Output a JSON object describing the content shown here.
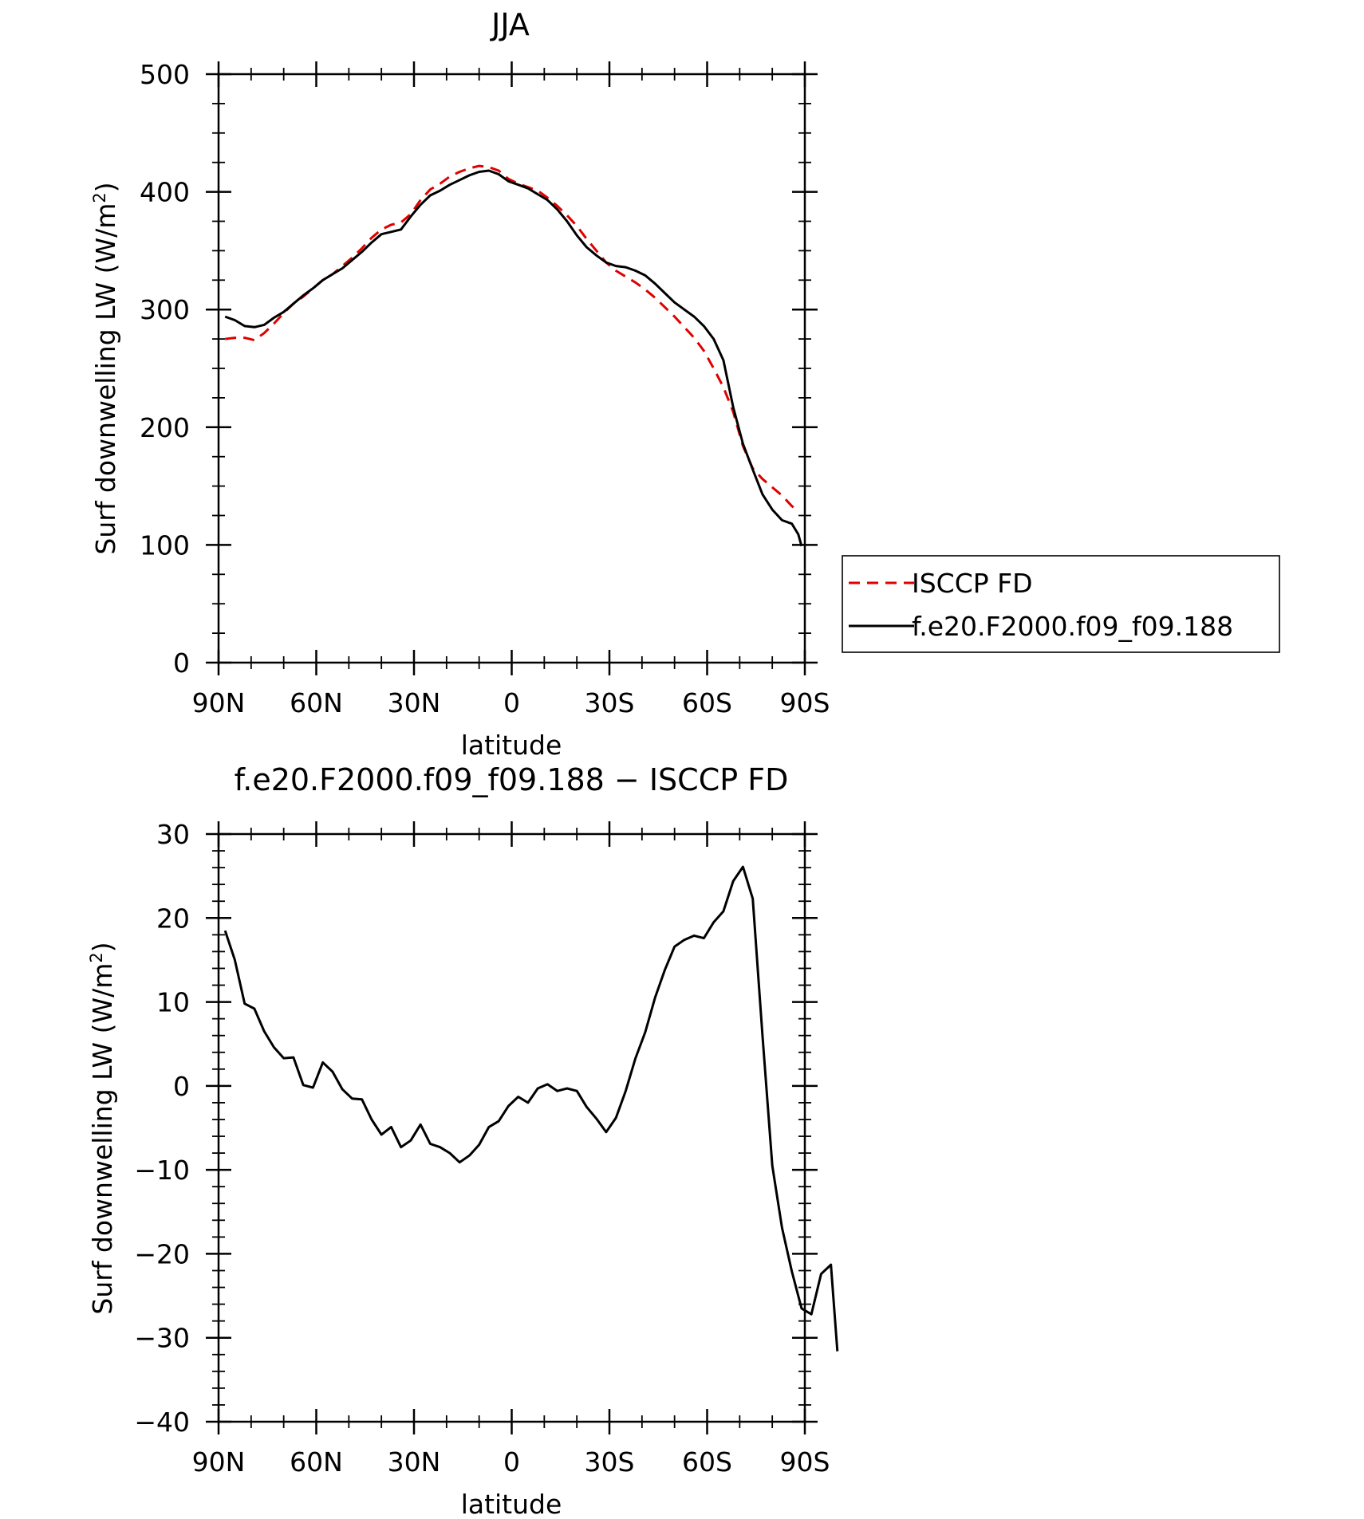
{
  "chart_data": [
    {
      "type": "line",
      "title": "JJA",
      "xlabel": "latitude",
      "ylabel": "Surf downwelling LW (W/m²)",
      "ylabel_main": "Surf downwelling LW (W/m",
      "ylabel_sup": "2",
      "ylabel_close": ")",
      "xlim": [
        90,
        -90
      ],
      "ylim": [
        0,
        500
      ],
      "xticks": [
        {
          "value": 90,
          "label": "90N"
        },
        {
          "value": 60,
          "label": "60N"
        },
        {
          "value": 30,
          "label": "30N"
        },
        {
          "value": 0,
          "label": "0"
        },
        {
          "value": -30,
          "label": "30S"
        },
        {
          "value": -60,
          "label": "60S"
        },
        {
          "value": -90,
          "label": "90S"
        }
      ],
      "yticks": [
        {
          "value": 0,
          "label": "0"
        },
        {
          "value": 100,
          "label": "100"
        },
        {
          "value": 200,
          "label": "200"
        },
        {
          "value": 300,
          "label": "300"
        },
        {
          "value": 400,
          "label": "400"
        },
        {
          "value": 500,
          "label": "500"
        }
      ],
      "legend": "right",
      "series": [
        {
          "name": "ISCCP FD",
          "color": "#e00000",
          "dashed": true,
          "points": [
            [
              88,
              275
            ],
            [
              85,
              276
            ],
            [
              82,
              276
            ],
            [
              79,
              274
            ],
            [
              76,
              280
            ],
            [
              73,
              288
            ],
            [
              70,
              297
            ],
            [
              67,
              305
            ],
            [
              64,
              311
            ],
            [
              61,
              318
            ],
            [
              58,
              325
            ],
            [
              55,
              330
            ],
            [
              52,
              337
            ],
            [
              49,
              344
            ],
            [
              46,
              352
            ],
            [
              43,
              361
            ],
            [
              40,
              368
            ],
            [
              37,
              372
            ],
            [
              34,
              374
            ],
            [
              31,
              381
            ],
            [
              28,
              393
            ],
            [
              25,
              402
            ],
            [
              22,
              407
            ],
            [
              19,
              413
            ],
            [
              16,
              417
            ],
            [
              13,
              420
            ],
            [
              10,
              422
            ],
            [
              7,
              421
            ],
            [
              4,
              418
            ],
            [
              1,
              411
            ],
            [
              -2,
              407
            ],
            [
              -5,
              404
            ],
            [
              -8,
              401
            ],
            [
              -11,
              395
            ],
            [
              -14,
              388
            ],
            [
              -17,
              380
            ],
            [
              -20,
              371
            ],
            [
              -23,
              360
            ],
            [
              -26,
              350
            ],
            [
              -29,
              340
            ],
            [
              -32,
              333
            ],
            [
              -35,
              328
            ],
            [
              -38,
              323
            ],
            [
              -41,
              317
            ],
            [
              -44,
              310
            ],
            [
              -47,
              302
            ],
            [
              -50,
              294
            ],
            [
              -53,
              285
            ],
            [
              -56,
              276
            ],
            [
              -59,
              265
            ],
            [
              -62,
              250
            ],
            [
              -65,
              234
            ],
            [
              -68,
              213
            ],
            [
              -71,
              184
            ],
            [
              -74,
              165
            ],
            [
              -77,
              156
            ],
            [
              -80,
              149
            ],
            [
              -83,
              142
            ],
            [
              -86,
              133
            ],
            [
              -88,
              129
            ]
          ]
        },
        {
          "name": "f.e20.F2000.f09_f09.188",
          "color": "#000000",
          "dashed": false,
          "points": [
            [
              88,
              294
            ],
            [
              85,
              291
            ],
            [
              82,
              286
            ],
            [
              79,
              285
            ],
            [
              76,
              287
            ],
            [
              73,
              293
            ],
            [
              70,
              298
            ],
            [
              67,
              305
            ],
            [
              64,
              312
            ],
            [
              61,
              318
            ],
            [
              58,
              325
            ],
            [
              55,
              330
            ],
            [
              52,
              335
            ],
            [
              49,
              342
            ],
            [
              46,
              349
            ],
            [
              43,
              357
            ],
            [
              40,
              364
            ],
            [
              37,
              366
            ],
            [
              34,
              368
            ],
            [
              31,
              379
            ],
            [
              28,
              389
            ],
            [
              25,
              397
            ],
            [
              22,
              401
            ],
            [
              19,
              406
            ],
            [
              16,
              410
            ],
            [
              13,
              414
            ],
            [
              10,
              417
            ],
            [
              7,
              418
            ],
            [
              4,
              415
            ],
            [
              1,
              409
            ],
            [
              -2,
              406
            ],
            [
              -5,
              403
            ],
            [
              -8,
              398
            ],
            [
              -11,
              393
            ],
            [
              -14,
              385
            ],
            [
              -17,
              375
            ],
            [
              -20,
              363
            ],
            [
              -23,
              353
            ],
            [
              -26,
              346
            ],
            [
              -29,
              340
            ],
            [
              -32,
              337
            ],
            [
              -35,
              336
            ],
            [
              -38,
              333
            ],
            [
              -41,
              329
            ],
            [
              -44,
              322
            ],
            [
              -47,
              314
            ],
            [
              -50,
              306
            ],
            [
              -53,
              300
            ],
            [
              -56,
              294
            ],
            [
              -59,
              286
            ],
            [
              -62,
              275
            ],
            [
              -65,
              257
            ],
            [
              -68,
              217
            ],
            [
              -71,
              186
            ],
            [
              -74,
              164
            ],
            [
              -77,
              143
            ],
            [
              -80,
              130
            ],
            [
              -83,
              121
            ],
            [
              -86,
              118
            ],
            [
              -88,
              109
            ],
            [
              -89,
              99
            ]
          ]
        }
      ]
    },
    {
      "type": "line",
      "title": "f.e20.F2000.f09_f09.188 − ISCCP FD",
      "xlabel": "latitude",
      "ylabel": "Surf downwelling LW (W/m²)",
      "ylabel_main": "Surf downwelling LW (W/m",
      "ylabel_sup": "2",
      "ylabel_close": ")",
      "xlim": [
        90,
        -90
      ],
      "ylim": [
        -40,
        30
      ],
      "xticks": [
        {
          "value": 90,
          "label": "90N"
        },
        {
          "value": 60,
          "label": "60N"
        },
        {
          "value": 30,
          "label": "30N"
        },
        {
          "value": 0,
          "label": "0"
        },
        {
          "value": -30,
          "label": "30S"
        },
        {
          "value": -60,
          "label": "60S"
        },
        {
          "value": -90,
          "label": "90S"
        }
      ],
      "yticks": [
        {
          "value": -40,
          "label": "−40"
        },
        {
          "value": -30,
          "label": "−30"
        },
        {
          "value": -20,
          "label": "−20"
        },
        {
          "value": -10,
          "label": "−10"
        },
        {
          "value": 0,
          "label": "0"
        },
        {
          "value": 10,
          "label": "10"
        },
        {
          "value": 20,
          "label": "20"
        },
        {
          "value": 30,
          "label": "30"
        }
      ],
      "series": [
        {
          "name": "",
          "color": "#000000",
          "dashed": false,
          "points": [
            [
              88,
              18.5
            ],
            [
              85,
              15
            ],
            [
              82,
              9.8
            ],
            [
              79,
              9.2
            ],
            [
              76,
              6.5
            ],
            [
              73,
              4.6
            ],
            [
              70,
              3.3
            ],
            [
              67,
              3.4
            ],
            [
              64,
              0.1
            ],
            [
              61,
              -0.2
            ],
            [
              58,
              2.8
            ],
            [
              55,
              1.7
            ],
            [
              52,
              -0.4
            ],
            [
              49,
              -1.5
            ],
            [
              46,
              -1.6
            ],
            [
              43,
              -4.0
            ],
            [
              40,
              -5.8
            ],
            [
              37,
              -4.9
            ],
            [
              34,
              -7.3
            ],
            [
              31,
              -6.5
            ],
            [
              28,
              -4.6
            ],
            [
              25,
              -6.9
            ],
            [
              22,
              -7.3
            ],
            [
              19,
              -8.0
            ],
            [
              16,
              -9.1
            ],
            [
              13,
              -8.3
            ],
            [
              10,
              -7.0
            ],
            [
              7,
              -4.9
            ],
            [
              4,
              -4.2
            ],
            [
              1,
              -2.4
            ],
            [
              -2,
              -1.3
            ],
            [
              -5,
              -2.0
            ],
            [
              -8,
              -0.3
            ],
            [
              -11,
              0.2
            ],
            [
              -14,
              -0.6
            ],
            [
              -17,
              -0.3
            ],
            [
              -20,
              -0.6
            ],
            [
              -23,
              -2.5
            ],
            [
              -26,
              -3.9
            ],
            [
              -29,
              -5.5
            ],
            [
              -32,
              -3.8
            ],
            [
              -35,
              -0.6
            ],
            [
              -38,
              3.3
            ],
            [
              -41,
              6.4
            ],
            [
              -44,
              10.5
            ],
            [
              -47,
              13.8
            ],
            [
              -50,
              16.6
            ],
            [
              -53,
              17.4
            ],
            [
              -56,
              17.9
            ],
            [
              -59,
              17.6
            ],
            [
              -62,
              19.5
            ],
            [
              -65,
              20.8
            ],
            [
              -68,
              24.4
            ],
            [
              -71,
              26.1
            ],
            [
              -74,
              22.3
            ],
            [
              -77,
              6.0
            ],
            [
              -80,
              -9.5
            ],
            [
              -83,
              -16.9
            ],
            [
              -86,
              -22.1
            ],
            [
              -89,
              -26.5
            ],
            [
              -92,
              -27.2
            ],
            [
              -95,
              -22.4
            ],
            [
              -98,
              -21.3
            ],
            [
              -100,
              -31.6
            ]
          ]
        }
      ]
    }
  ]
}
